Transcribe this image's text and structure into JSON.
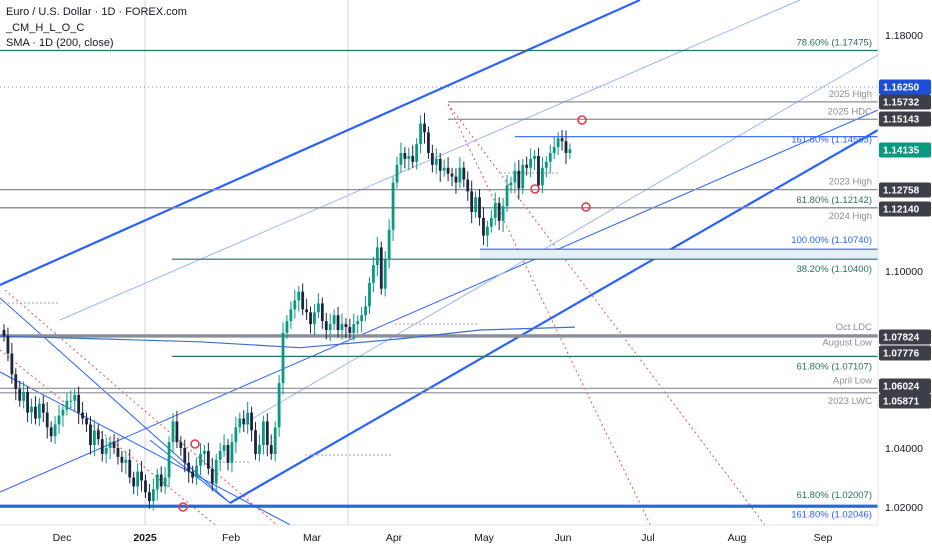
{
  "header": {
    "title": "Euro / U.S. Dollar · 1D · FOREX.com",
    "indicator_1": "_CM_H_L_O_C",
    "indicator_2": "SMA · 1D (200, close)"
  },
  "colors": {
    "up": "#089981",
    "down": "#1c2540",
    "channel": "#2962ff",
    "sma": "#3c6fc9",
    "level_gray": "#8a8e99",
    "level_teal": "#2b6f68",
    "fib_blue": "#2962ff",
    "red_guide": "#e35151",
    "price_tag_blue": "#1c4ed8",
    "price_tag_green": "#089981",
    "price_tag_dark": "#3c3f49"
  },
  "chart_data": {
    "type": "candlestick",
    "symbol": "Euro / U.S. Dollar",
    "timeframe": "1D",
    "ylim": [
      1.0165,
      1.1923
    ],
    "y_ticks": [
      "1.18000",
      "1.10000",
      "1.04000",
      "1.02000"
    ],
    "x_ticks": [
      "Dec",
      "2025",
      "Feb",
      "Mar",
      "Apr",
      "May",
      "Jun",
      "Jul",
      "Aug",
      "Sep"
    ],
    "price_tags": [
      {
        "value": "1.16250",
        "style": "blue"
      },
      {
        "value": "1.15732",
        "style": "dark"
      },
      {
        "value": "1.15143",
        "style": "dark"
      },
      {
        "value": "1.14135",
        "style": "green"
      },
      {
        "value": "1.12758",
        "style": "dark"
      },
      {
        "value": "1.12140",
        "style": "dark"
      },
      {
        "value": "1.07824",
        "style": "dark"
      },
      {
        "value": "1.07776",
        "style": "dark"
      },
      {
        "value": "1.06024",
        "style": "dark"
      },
      {
        "value": "1.05871",
        "style": "dark"
      }
    ],
    "level_labels": [
      {
        "text": "78.60% (1.17475)",
        "value": 1.17475,
        "color": "teal"
      },
      {
        "text": "2025 High",
        "value": 1.15732,
        "color": "gray"
      },
      {
        "text": "2025 HDC",
        "value": 1.15143,
        "color": "gray"
      },
      {
        "text": "161.80% (1.14553)",
        "value": 1.14553,
        "color": "blue"
      },
      {
        "text": "2023 High",
        "value": 1.12758,
        "color": "gray"
      },
      {
        "text": "61.80% (1.12142)",
        "value": 1.12142,
        "color": "teal"
      },
      {
        "text": "2024 High",
        "value": 1.1214,
        "color": "gray"
      },
      {
        "text": "100.00% (1.10740)",
        "value": 1.1074,
        "color": "blue"
      },
      {
        "text": "38.20% (1.10400)",
        "value": 1.104,
        "color": "teal"
      },
      {
        "text": "Oct LDC",
        "value": 1.07824,
        "color": "gray"
      },
      {
        "text": "August Low",
        "value": 1.07776,
        "color": "gray"
      },
      {
        "text": "61.80% (1.07107)",
        "value": 1.07107,
        "color": "teal"
      },
      {
        "text": "April Low",
        "value": 1.06024,
        "color": "gray"
      },
      {
        "text": "2023 LWC",
        "value": 1.05871,
        "color": "gray"
      },
      {
        "text": "61.80% (1.02007)",
        "value": 1.02007,
        "color": "teal"
      },
      {
        "text": "161.80% (1.02046)",
        "value": 1.02046,
        "color": "blue"
      }
    ],
    "series": [
      {
        "name": "EUR/USD daily candles (approx. close path)",
        "values": [
          1.078,
          1.072,
          1.065,
          1.06,
          1.056,
          1.059,
          1.052,
          1.054,
          1.05,
          1.055,
          1.052,
          1.047,
          1.044,
          1.048,
          1.051,
          1.053,
          1.056,
          1.056,
          1.058,
          1.052,
          1.05,
          1.048,
          1.041,
          1.046,
          1.043,
          1.038,
          1.04,
          1.042,
          1.04,
          1.037,
          1.035,
          1.036,
          1.03,
          1.027,
          1.032,
          1.029,
          1.025,
          1.022,
          1.026,
          1.031,
          1.027,
          1.03,
          1.042,
          1.049,
          1.042,
          1.04,
          1.035,
          1.032,
          1.03,
          1.034,
          1.038,
          1.039,
          1.033,
          1.028,
          1.036,
          1.039,
          1.041,
          1.035,
          1.042,
          1.047,
          1.05,
          1.048,
          1.052,
          1.046,
          1.038,
          1.041,
          1.049,
          1.041,
          1.038,
          1.047,
          1.062,
          1.079,
          1.083,
          1.087,
          1.09,
          1.093,
          1.087,
          1.086,
          1.082,
          1.086,
          1.089,
          1.083,
          1.08,
          1.082,
          1.085,
          1.08,
          1.082,
          1.081,
          1.079,
          1.082,
          1.083,
          1.085,
          1.088,
          1.096,
          1.102,
          1.108,
          1.094,
          1.104,
          1.114,
          1.13,
          1.136,
          1.14,
          1.138,
          1.139,
          1.137,
          1.143,
          1.15,
          1.147,
          1.14,
          1.136,
          1.138,
          1.134,
          1.135,
          1.133,
          1.132,
          1.13,
          1.135,
          1.131,
          1.127,
          1.12,
          1.125,
          1.118,
          1.112,
          1.115,
          1.118,
          1.123,
          1.117,
          1.122,
          1.129,
          1.13,
          1.134,
          1.128,
          1.136,
          1.135,
          1.138,
          1.139,
          1.129,
          1.135,
          1.137,
          1.14,
          1.142,
          1.145,
          1.144,
          1.14,
          1.1413
        ]
      }
    ],
    "sma_200": [
      [
        -10,
        1.078
      ],
      [
        100,
        1.077
      ],
      [
        200,
        1.076
      ],
      [
        300,
        1.074
      ],
      [
        400,
        1.077
      ],
      [
        480,
        1.08
      ],
      [
        575,
        1.081
      ]
    ]
  }
}
